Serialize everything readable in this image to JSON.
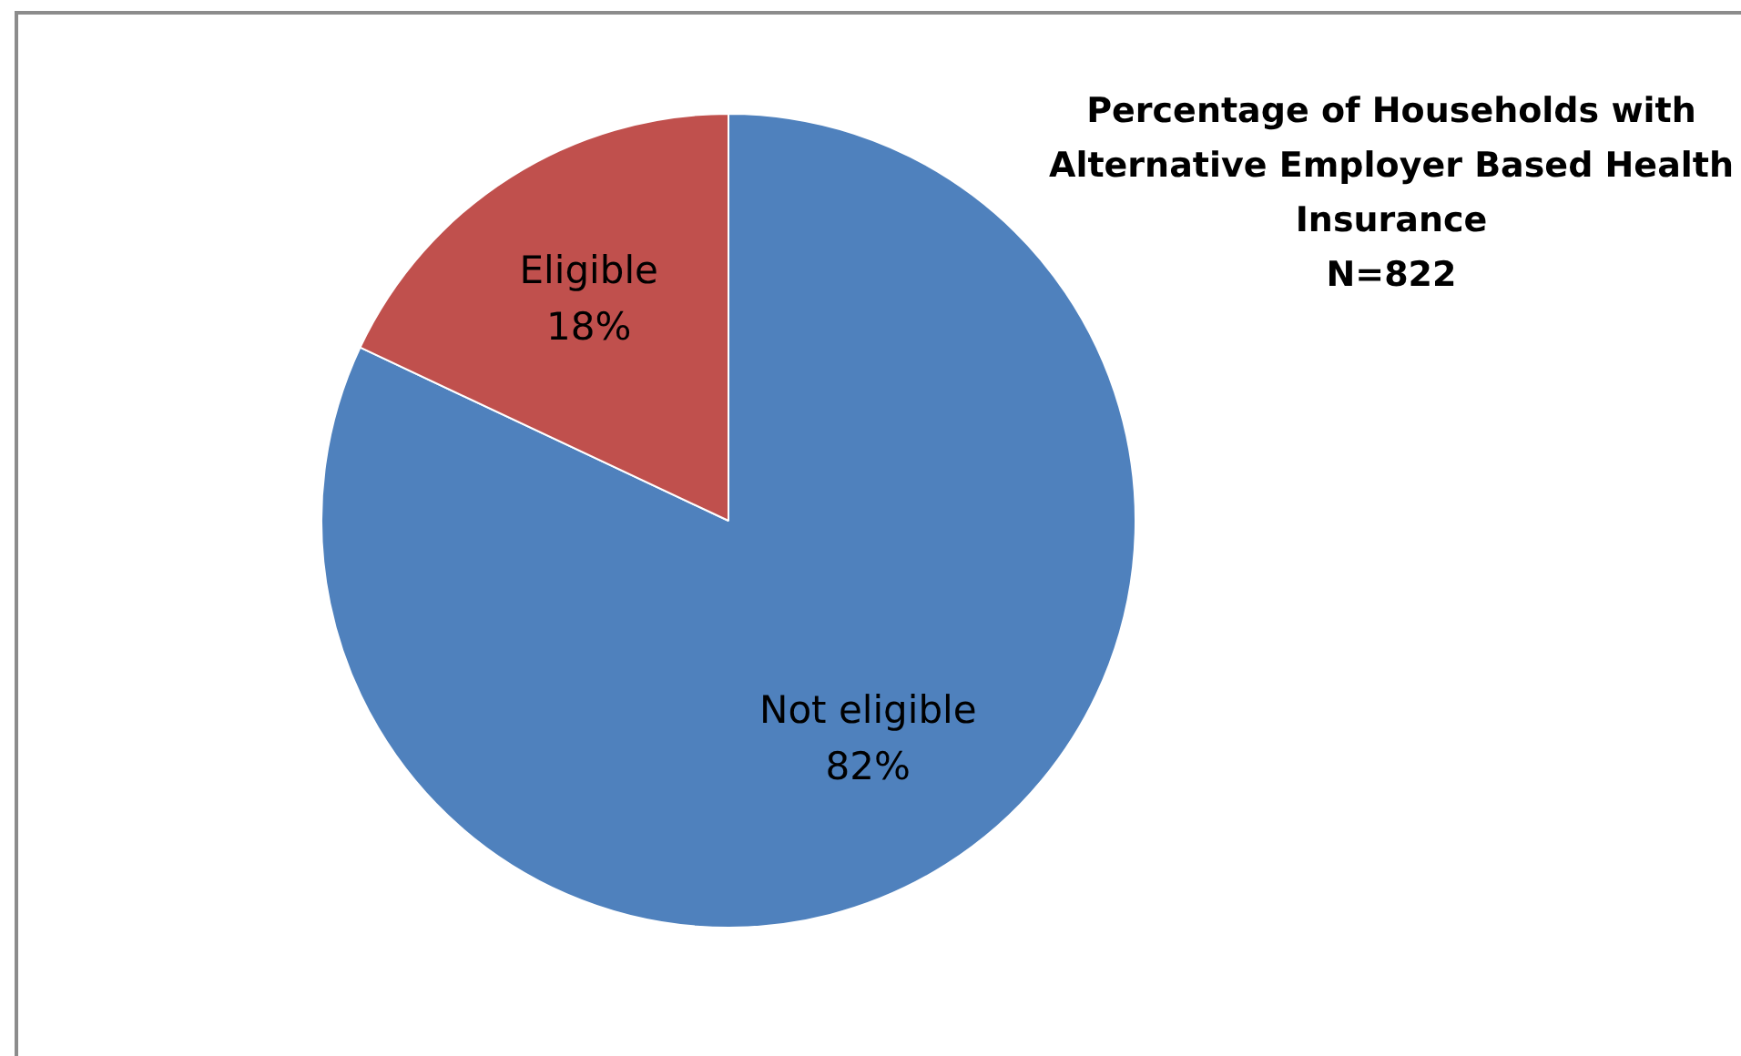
{
  "chart_data": {
    "type": "pie",
    "title": "Percentage of Households with Alternative Employer Based Health Insurance",
    "subtitle": "N=822",
    "categories": [
      "Not eligible",
      "Eligible"
    ],
    "values": [
      82,
      18
    ],
    "colors": [
      "#4f81bd",
      "#c0504d"
    ],
    "value_labels": [
      "82%",
      "18%"
    ],
    "legend": false
  }
}
